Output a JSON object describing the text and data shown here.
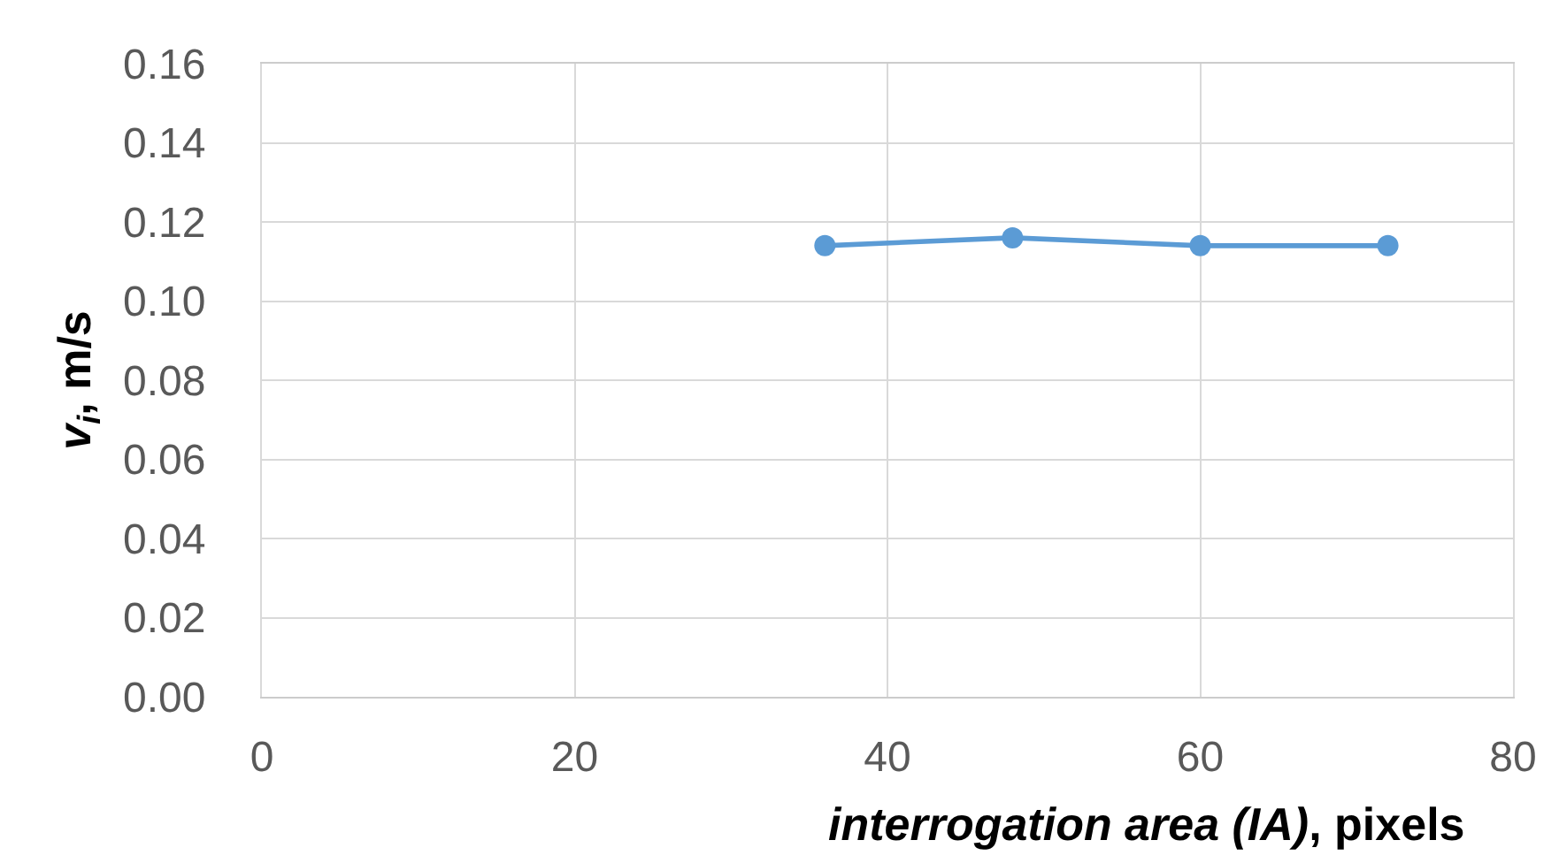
{
  "chart_data": {
    "type": "line",
    "xlabel": "interrogation area (IA), pixels",
    "ylabel": "v$_{i}$, m/s",
    "x": [
      36,
      48,
      60,
      72
    ],
    "series": [
      {
        "color": "#5b9bd5",
        "values": [
          0.114,
          0.116,
          0.114,
          0.114
        ]
      }
    ],
    "xlim": [
      0,
      80
    ],
    "xticks": [
      0,
      20,
      40,
      60,
      80
    ],
    "ylim": [
      0,
      0.16
    ],
    "yticks": [
      {
        "value": 0,
        "label": "0.00"
      },
      {
        "value": 0.02,
        "label": "0.02"
      },
      {
        "value": 0.04,
        "label": "0.04"
      },
      {
        "value": 0.06,
        "label": "0.06"
      },
      {
        "value": 0.08,
        "label": "0.08"
      },
      {
        "value": 0.1,
        "label": "0.10"
      },
      {
        "value": 0.12,
        "label": "0.12"
      },
      {
        "value": 0.14,
        "label": "0.14"
      },
      {
        "value": 0.16,
        "label": "0.16"
      }
    ],
    "grid": true,
    "marker": "circle",
    "line_style": "solid"
  }
}
